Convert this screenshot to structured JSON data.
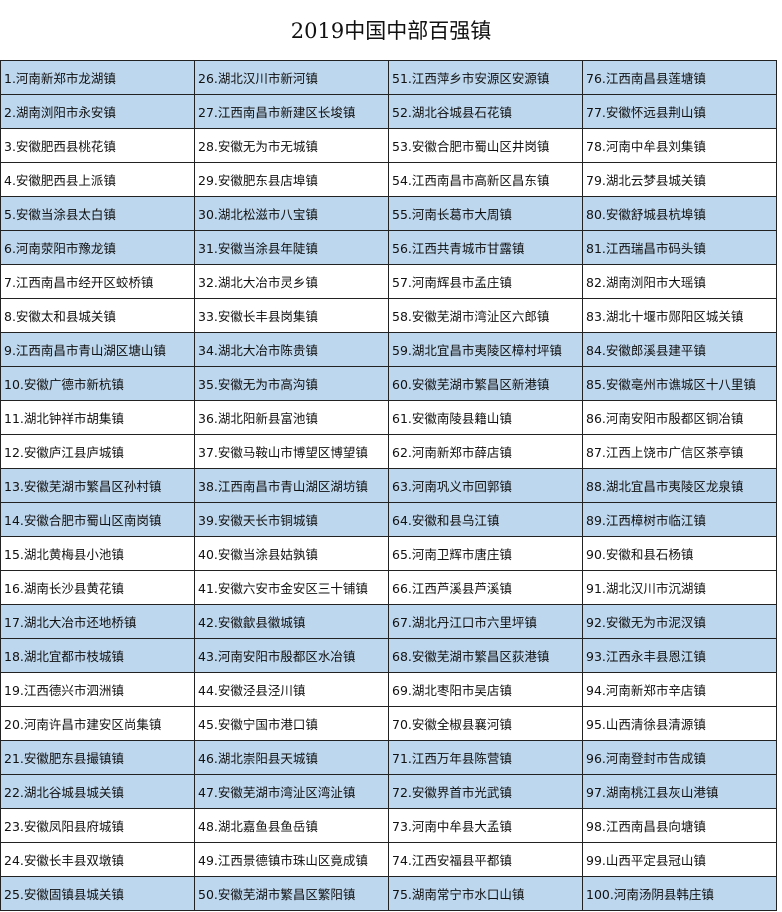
{
  "header": {
    "title": "2019中国中部百强镇"
  },
  "table": {
    "rows": [
      [
        "1.河南新郑市龙湖镇",
        "26.湖北汉川市新河镇",
        "51.江西萍乡市安源区安源镇",
        "76.江西南昌县莲塘镇"
      ],
      [
        "2.湖南浏阳市永安镇",
        "27.江西南昌市新建区长埈镇",
        "52.湖北谷城县石花镇",
        "77.安徽怀远县荆山镇"
      ],
      [
        "3.安徽肥西县桃花镇",
        "28.安徽无为市无城镇",
        "53.安徽合肥市蜀山区井岗镇",
        "78.河南中牟县刘集镇"
      ],
      [
        "4.安徽肥西县上派镇",
        "29.安徽肥东县店埠镇",
        "54.江西南昌市高新区昌东镇",
        "79.湖北云梦县城关镇"
      ],
      [
        "5.安徽当涂县太白镇",
        "30.湖北松滋市八宝镇",
        "55.河南长葛市大周镇",
        "80.安徽舒城县杭埠镇"
      ],
      [
        "6.河南荥阳市豫龙镇",
        "31.安徽当涂县年陡镇",
        "56.江西共青城市甘露镇",
        "81.江西瑞昌市码头镇"
      ],
      [
        "7.江西南昌市经开区蛟桥镇",
        "32.湖北大冶市灵乡镇",
        "57.河南辉县市孟庄镇",
        "82.湖南浏阳市大瑶镇"
      ],
      [
        "8.安徽太和县城关镇",
        "33.安徽长丰县岗集镇",
        "58.安徽芜湖市湾沚区六郎镇",
        "83.湖北十堰市郧阳区城关镇"
      ],
      [
        "9.江西南昌市青山湖区塘山镇",
        "34.湖北大冶市陈贵镇",
        "59.湖北宜昌市夷陵区樟村坪镇",
        "84.安徽郎溪县建平镇"
      ],
      [
        "10.安徽广德市新杭镇",
        "35.安徽无为市高沟镇",
        "60.安徽芜湖市繁昌区新港镇",
        "85.安徽亳州市谯城区十八里镇"
      ],
      [
        "11.湖北钟祥市胡集镇",
        "36.湖北阳新县富池镇",
        "61.安徽南陵县籍山镇",
        "86.河南安阳市殷都区铜冶镇"
      ],
      [
        "12.安徽庐江县庐城镇",
        "37.安徽马鞍山市博望区博望镇",
        "62.河南新郑市薛店镇",
        "87.江西上饶市广信区茶亭镇"
      ],
      [
        "13.安徽芜湖市繁昌区孙村镇",
        "38.江西南昌市青山湖区湖坊镇",
        "63.河南巩义市回郭镇",
        "88.湖北宜昌市夷陵区龙泉镇"
      ],
      [
        "14.安徽合肥市蜀山区南岗镇",
        "39.安徽天长市铜城镇",
        "64.安徽和县乌江镇",
        "89.江西樟树市临江镇"
      ],
      [
        "15.湖北黄梅县小池镇",
        "40.安徽当涂县姑孰镇",
        "65.河南卫辉市唐庄镇",
        "90.安徽和县石杨镇"
      ],
      [
        "16.湖南长沙县黄花镇",
        "41.安徽六安市金安区三十铺镇",
        "66.江西芦溪县芦溪镇",
        "91.湖北汉川市沉湖镇"
      ],
      [
        "17.湖北大冶市还地桥镇",
        "42.安徽歙县徽城镇",
        "67.湖北丹江口市六里坪镇",
        "92.安徽无为市泥汊镇"
      ],
      [
        "18.湖北宜都市枝城镇",
        "43.河南安阳市殷都区水冶镇",
        "68.安徽芜湖市繁昌区荻港镇",
        "93.江西永丰县恩江镇"
      ],
      [
        "19.江西德兴市泗洲镇",
        "44.安徽泾县泾川镇",
        "69.湖北枣阳市吴店镇",
        "94.河南新郑市辛店镇"
      ],
      [
        "20.河南许昌市建安区尚集镇",
        "45.安徽宁国市港口镇",
        "70.安徽全椒县襄河镇",
        "95.山西清徐县清源镇"
      ],
      [
        "21.安徽肥东县撮镇镇",
        "46.湖北崇阳县天城镇",
        "71.江西万年县陈营镇",
        "96.河南登封市告成镇"
      ],
      [
        "22.湖北谷城县城关镇",
        "47.安徽芜湖市湾沚区湾沚镇",
        "72.安徽界首市光武镇",
        "97.湖南桃江县灰山港镇"
      ],
      [
        "23.安徽凤阳县府城镇",
        "48.湖北嘉鱼县鱼岳镇",
        "73.河南中牟县大孟镇",
        "98.江西南昌县向塘镇"
      ],
      [
        "24.安徽长丰县双墩镇",
        "49.江西景德镇市珠山区竟成镇",
        "74.江西安福县平都镇",
        "99.山西平定县冠山镇"
      ],
      [
        "25.安徽固镇县城关镇",
        "50.安徽芜湖市繁昌区繁阳镇",
        "75.湖南常宁市水口山镇",
        "100.河南汤阴县韩庄镇"
      ]
    ]
  }
}
